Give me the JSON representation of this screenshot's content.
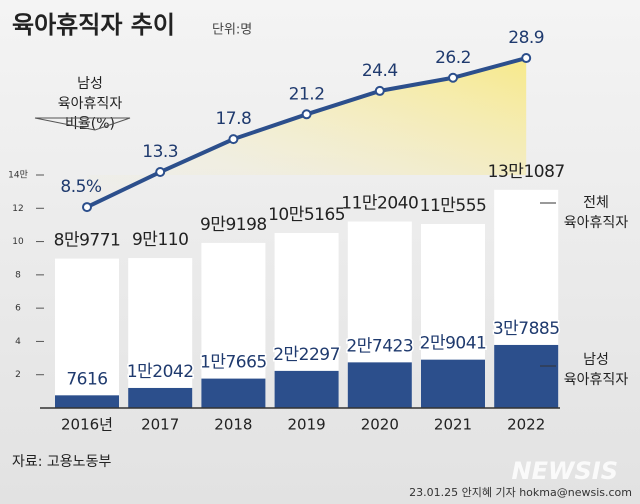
{
  "chart_data": {
    "type": "bar_line",
    "title": "육아휴직자 추이",
    "subtitle": "단위:명",
    "categories": [
      "2016년",
      "2017",
      "2018",
      "2019",
      "2020",
      "2021",
      "2022"
    ],
    "series": [
      {
        "name": "전체 육아휴직자",
        "color": "#ffffff",
        "values": [
          8.9771,
          9.011,
          9.9198,
          10.5165,
          11.204,
          11.0555,
          13.1087
        ],
        "value_labels": [
          "8만9771",
          "9만110",
          "9만9198",
          "10만5165",
          "11만2040",
          "11만555",
          "13만1087"
        ]
      },
      {
        "name": "남성 육아휴직자",
        "color": "#2c4f8c",
        "values": [
          0.7616,
          1.2042,
          1.7665,
          2.2297,
          2.7423,
          2.9041,
          3.7885
        ],
        "value_labels": [
          "7616",
          "1만2042",
          "1만7665",
          "2만2297",
          "2만7423",
          "2만9041",
          "3만7885"
        ]
      },
      {
        "name": "남성 육아휴직자 비율(%)",
        "color": "#2c4f8c",
        "axis": "y2",
        "values": [
          8.5,
          13.3,
          17.8,
          21.2,
          24.4,
          26.2,
          28.9
        ],
        "value_labels": [
          "8.5%",
          "13.3",
          "17.8",
          "21.2",
          "24.4",
          "26.2",
          "28.9"
        ]
      }
    ],
    "ylim": [
      0,
      14
    ],
    "yticks": [
      2,
      4,
      6,
      8,
      10,
      12,
      {
        "value": 14,
        "label": "14만"
      }
    ],
    "y2lim": [
      -19,
      30
    ],
    "source": "자료: 고용노동부",
    "credit": "23.01.25 안지혜 기자 hokma@newsis.com",
    "watermark": "NEWSIS"
  }
}
